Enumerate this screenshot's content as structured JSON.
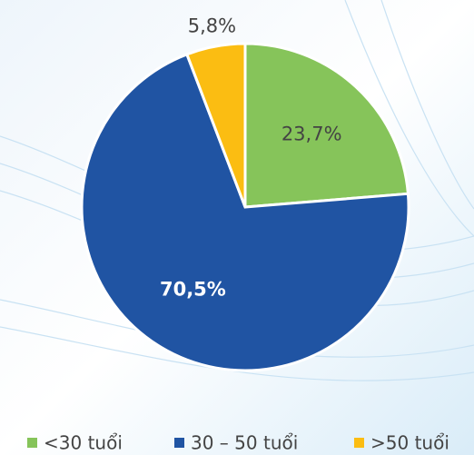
{
  "chart_data": {
    "type": "pie",
    "categories": [
      "<30 tuổi",
      "30 – 50 tuổi",
      ">50 tuổi"
    ],
    "values": [
      23.7,
      70.5,
      5.8
    ],
    "value_labels": [
      "23,7%",
      "70,5%",
      "5,8%"
    ],
    "colors": [
      "#86c45a",
      "#2054a3",
      "#fbbd12"
    ],
    "legend": "bottom"
  }
}
